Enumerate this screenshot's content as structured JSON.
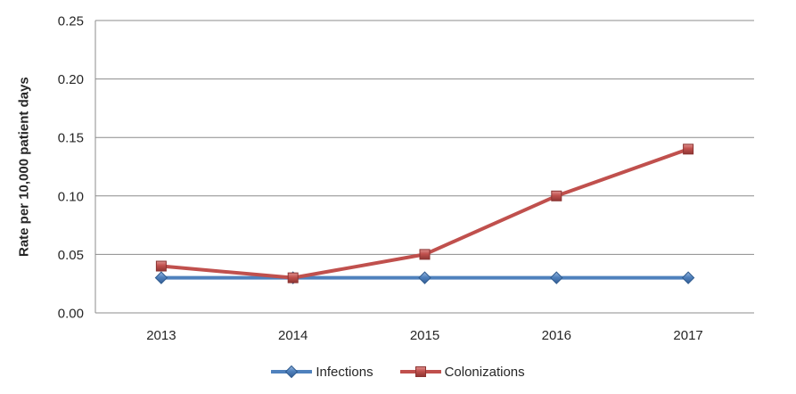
{
  "chart_data": {
    "type": "line",
    "title": "",
    "xlabel": "",
    "ylabel": "Rate per 10,000 patient days",
    "categories": [
      "2013",
      "2014",
      "2015",
      "2016",
      "2017"
    ],
    "series": [
      {
        "name": "Infections",
        "values": [
          0.03,
          0.03,
          0.03,
          0.03,
          0.03
        ],
        "color": "#4F81BD",
        "marker": "diamond",
        "marker_border": "#2F5B8E"
      },
      {
        "name": "Colonizations",
        "values": [
          0.04,
          0.03,
          0.05,
          0.1,
          0.14
        ],
        "color": "#C0504D",
        "marker": "square",
        "marker_border": "#8B3432"
      }
    ],
    "ylim": [
      0,
      0.25
    ],
    "yticks": [
      0,
      0.05,
      0.1,
      0.15,
      0.2,
      0.25
    ],
    "ytick_labels": [
      "0.00",
      "0.05",
      "0.10",
      "0.15",
      "0.20",
      "0.25"
    ],
    "grid": true,
    "legend_position": "bottom"
  },
  "colors": {
    "gridline": "#8C8C8C",
    "axis_line": "#8C8C8C",
    "tick_text": "#262626"
  }
}
